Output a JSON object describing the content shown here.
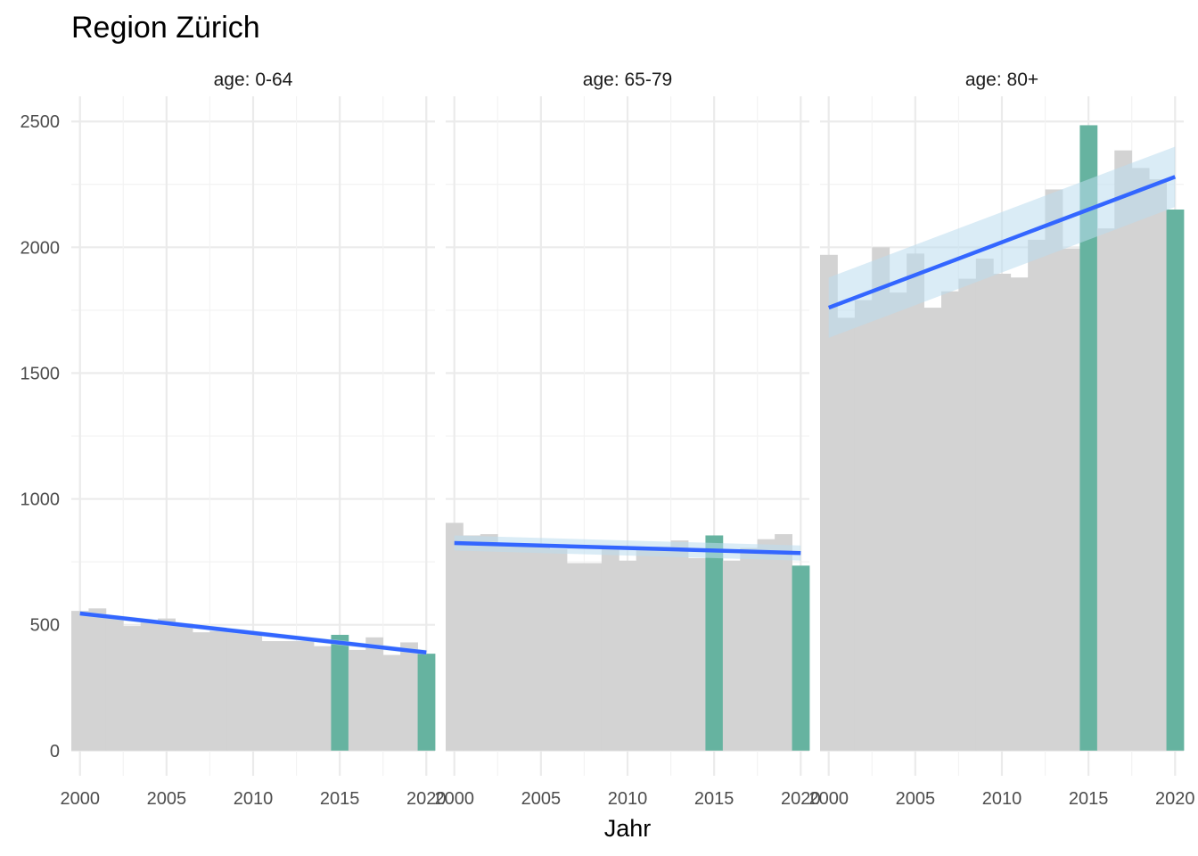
{
  "chart_data": {
    "type": "bar",
    "title": "Region Zürich",
    "xlabel": "Jahr",
    "ylabel": "",
    "ylim": [
      -100,
      2600
    ],
    "xlim": [
      1999.5,
      2020.5
    ],
    "x_ticks": [
      "2000",
      "2005",
      "2010",
      "2015",
      "2020"
    ],
    "y_ticks": [
      "0",
      "500",
      "1000",
      "1500",
      "2000",
      "2500"
    ],
    "grid": true,
    "legend": "none",
    "highlight_years": [
      2015,
      2020
    ],
    "colors": {
      "bar": "#d3d3d3",
      "highlight": "#66b3a0",
      "trend": "#3366ff",
      "ribbon": "#bcdcee"
    },
    "x": [
      2000,
      2001,
      2002,
      2003,
      2004,
      2005,
      2006,
      2007,
      2008,
      2009,
      2010,
      2011,
      2012,
      2013,
      2014,
      2015,
      2016,
      2017,
      2018,
      2019,
      2020
    ],
    "panels": [
      {
        "label": "age: 0-64",
        "values": [
          555,
          565,
          525,
          495,
          510,
          525,
          505,
          470,
          475,
          480,
          470,
          435,
          435,
          435,
          415,
          460,
          400,
          450,
          380,
          430,
          385
        ],
        "trend": {
          "start": [
            2000,
            545
          ],
          "end": [
            2020,
            390
          ],
          "band": 10
        }
      },
      {
        "label": "age: 65-79",
        "values": [
          905,
          855,
          860,
          825,
          815,
          820,
          800,
          745,
          745,
          800,
          755,
          805,
          810,
          835,
          765,
          855,
          755,
          805,
          840,
          860,
          735
        ],
        "trend": {
          "start": [
            2000,
            825
          ],
          "end": [
            2020,
            785
          ],
          "band": 30
        }
      },
      {
        "label": "age: 80+",
        "values": [
          1970,
          1720,
          1790,
          2000,
          1820,
          1975,
          1760,
          1825,
          1875,
          1955,
          1895,
          1880,
          2030,
          2230,
          1995,
          2485,
          2075,
          2385,
          2315,
          2270,
          2150
        ],
        "trend": {
          "start": [
            2000,
            1760
          ],
          "end": [
            2020,
            2280
          ],
          "band": 120
        }
      }
    ]
  }
}
